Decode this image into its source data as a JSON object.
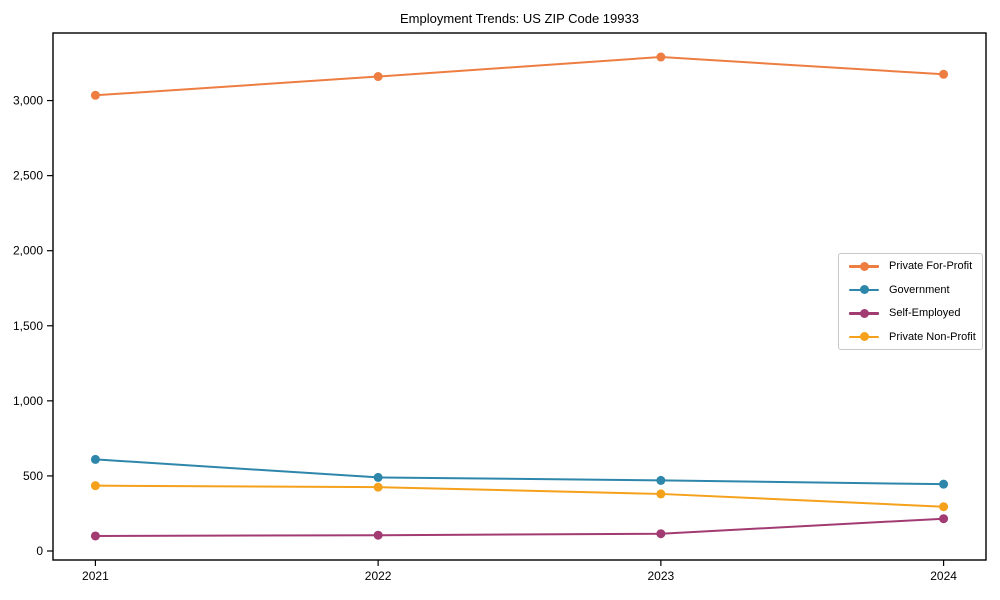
{
  "figure": {
    "title": "Employment Trends: US ZIP Code 19933",
    "background": "#ffffff",
    "axis_color": "#000000",
    "text_color": "#000000"
  },
  "chart_data": {
    "type": "line",
    "title": "Employment Trends: US ZIP Code 19933",
    "xlabel": "",
    "ylabel": "",
    "grid": false,
    "legend_position": "center-right",
    "marker": "circle",
    "x": [
      "2021",
      "2022",
      "2023",
      "2024"
    ],
    "series": [
      {
        "name": "Private For-Profit",
        "color": "#ED7D41",
        "values": [
          3035,
          3160,
          3290,
          3175
        ]
      },
      {
        "name": "Government",
        "color": "#2E86AB",
        "values": [
          610,
          490,
          470,
          445
        ]
      },
      {
        "name": "Self-Employed",
        "color": "#A23B72",
        "values": [
          100,
          105,
          115,
          215
        ]
      },
      {
        "name": "Private Non-Profit",
        "color": "#F5A11B",
        "values": [
          435,
          425,
          380,
          295
        ]
      }
    ],
    "yticks": [
      0,
      500,
      1000,
      1500,
      2000,
      2500,
      3000
    ],
    "ytick_labels": [
      "0",
      "500",
      "1,000",
      "1,500",
      "2,000",
      "2,500",
      "3,000"
    ],
    "ylim": [
      -60,
      3450
    ]
  }
}
